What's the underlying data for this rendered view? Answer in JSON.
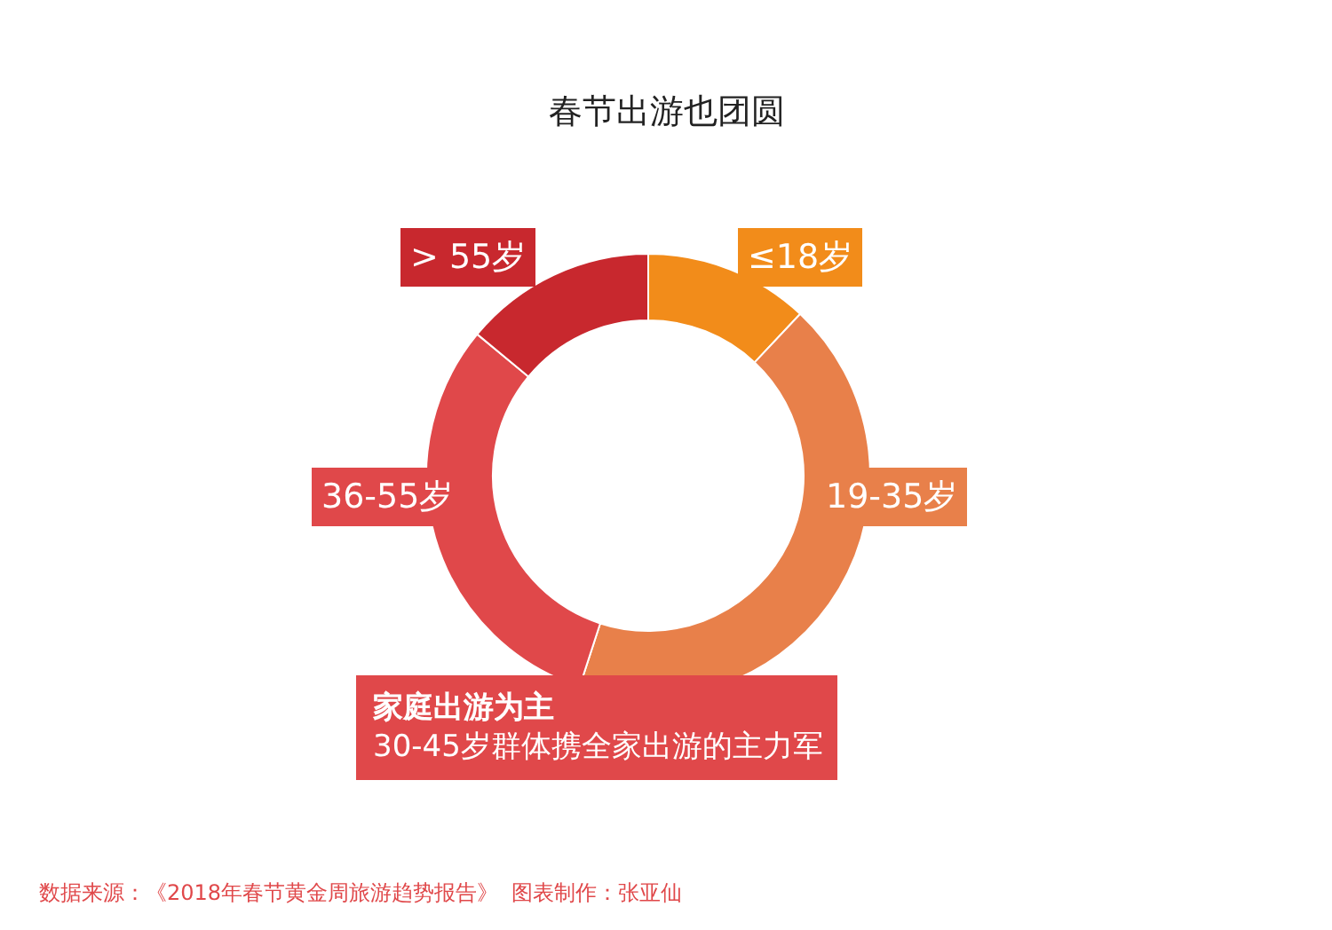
{
  "chart_data": {
    "type": "donut",
    "title": "春节出游也团圆",
    "categories": [
      "≤18岁",
      "19-35岁",
      "36-55岁",
      "> 55岁"
    ],
    "values": [
      12,
      43,
      31,
      14
    ],
    "colors": [
      "#f28c1a",
      "#e8804a",
      "#e0484a",
      "#c8282e"
    ],
    "legend": false,
    "annotations": [
      "家庭出游为主",
      "30-45岁群体携全家出游的主力军",
      "数据来源：《2018年春节黄金周旅游趋势报告》  图表制作：张亚仙"
    ]
  }
}
